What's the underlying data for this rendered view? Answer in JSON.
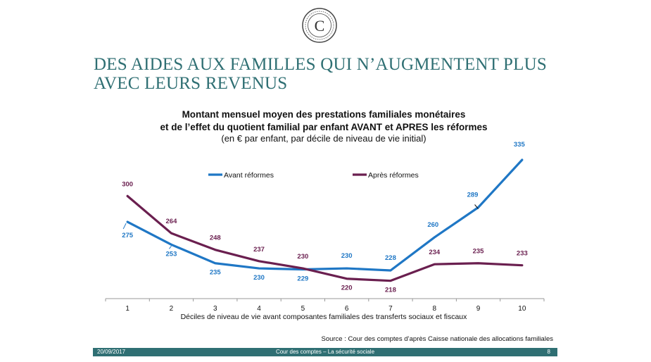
{
  "slide": {
    "title_line1": "DES AIDES AUX FAMILLES QUI N’AUGMENTENT PLUS",
    "title_line2": "AVEC LEURS REVENUS",
    "logo_text": "C"
  },
  "footer": {
    "date": "20/09/2017",
    "center": "Cour des comptes – La sécurité sociale",
    "page": "8"
  },
  "source": "Source : Cour des comptes d’après Caisse nationale des allocations familiales",
  "colors": {
    "avant": "#1f77c5",
    "apres": "#6a1f4f",
    "teal": "#2f6f73"
  },
  "chart_data": {
    "type": "line",
    "title_line1": "Montant mensuel moyen des prestations familiales monétaires",
    "title_line2": "et de l’effet du quotient familial par enfant AVANT et APRES  les réformes",
    "subtitle": "(en € par enfant, par décile de niveau de vie initial)",
    "xlabel": "Déciles de niveau de vie avant composantes familiales des transferts sociaux et fiscaux",
    "ylabel": "",
    "categories": [
      "1",
      "2",
      "3",
      "4",
      "5",
      "6",
      "7",
      "8",
      "9",
      "10"
    ],
    "series": [
      {
        "name": "Avant réformes",
        "values": [
          275,
          253,
          235,
          230,
          229,
          230,
          228,
          260,
          289,
          335
        ]
      },
      {
        "name": "Après réformes",
        "values": [
          300,
          264,
          248,
          237,
          230,
          220,
          218,
          234,
          235,
          233
        ]
      }
    ],
    "ylim": [
      200,
      340
    ],
    "grid": false,
    "legend": "top"
  }
}
